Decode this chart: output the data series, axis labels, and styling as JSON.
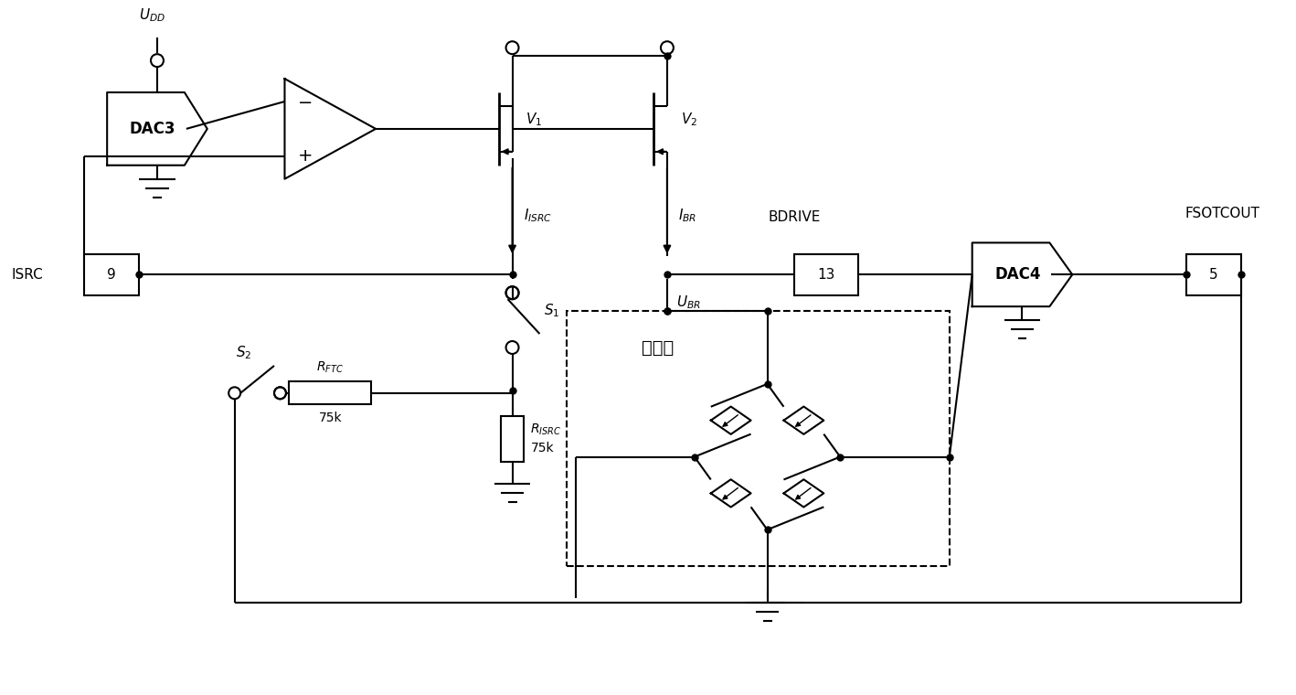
{
  "bg_color": "#ffffff",
  "line_color": "#000000",
  "fig_width": 14.18,
  "fig_height": 7.6,
  "dpi": 100,
  "xlim": [
    0,
    141.8
  ],
  "ylim": [
    0,
    76
  ]
}
